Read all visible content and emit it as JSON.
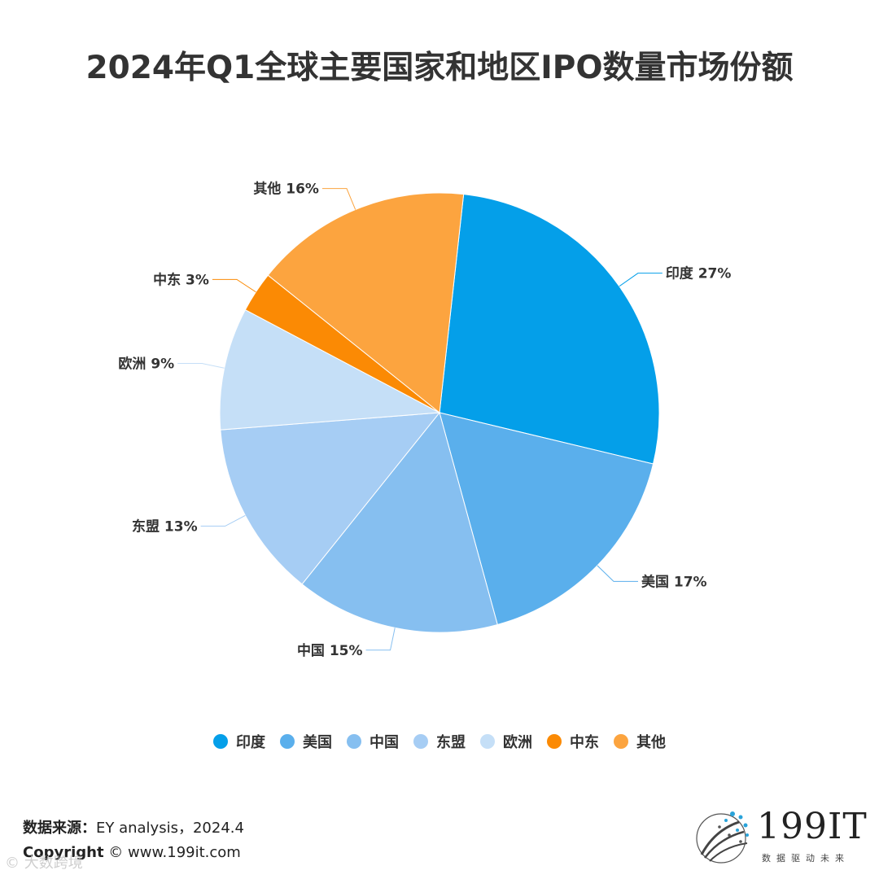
{
  "title": "2024年Q1全球主要国家和地区IPO数量市场份额",
  "chart_data": {
    "type": "pie",
    "title": "2024年Q1全球主要国家和地区IPO数量市场份额",
    "legend_position": "bottom",
    "slices": [
      {
        "name": "印度",
        "value": 27,
        "label": "印度 27%",
        "color": "#049fe9"
      },
      {
        "name": "美国",
        "value": 17,
        "label": "美国 17%",
        "color": "#5aafec"
      },
      {
        "name": "中国",
        "value": 15,
        "label": "中国 15%",
        "color": "#86bff0"
      },
      {
        "name": "东盟",
        "value": 13,
        "label": "东盟 13%",
        "color": "#a6cdf4"
      },
      {
        "name": "欧洲",
        "value": 9,
        "label": "欧洲 9%",
        "color": "#c5dff7"
      },
      {
        "name": "中东",
        "value": 3,
        "label": "中东 3%",
        "color": "#fb8a04"
      },
      {
        "name": "其他",
        "value": 16,
        "label": "其他 16%",
        "color": "#fca43f"
      }
    ]
  },
  "footer": {
    "source_label": "数据来源：",
    "source_value": "EY analysis，2024.4",
    "copyright_label": "Copyright",
    "copyright_value": "© www.199it.com"
  },
  "logo": {
    "text": "199IT",
    "subtitle": "数据驱动未来"
  },
  "watermark": "© 大数跨境"
}
